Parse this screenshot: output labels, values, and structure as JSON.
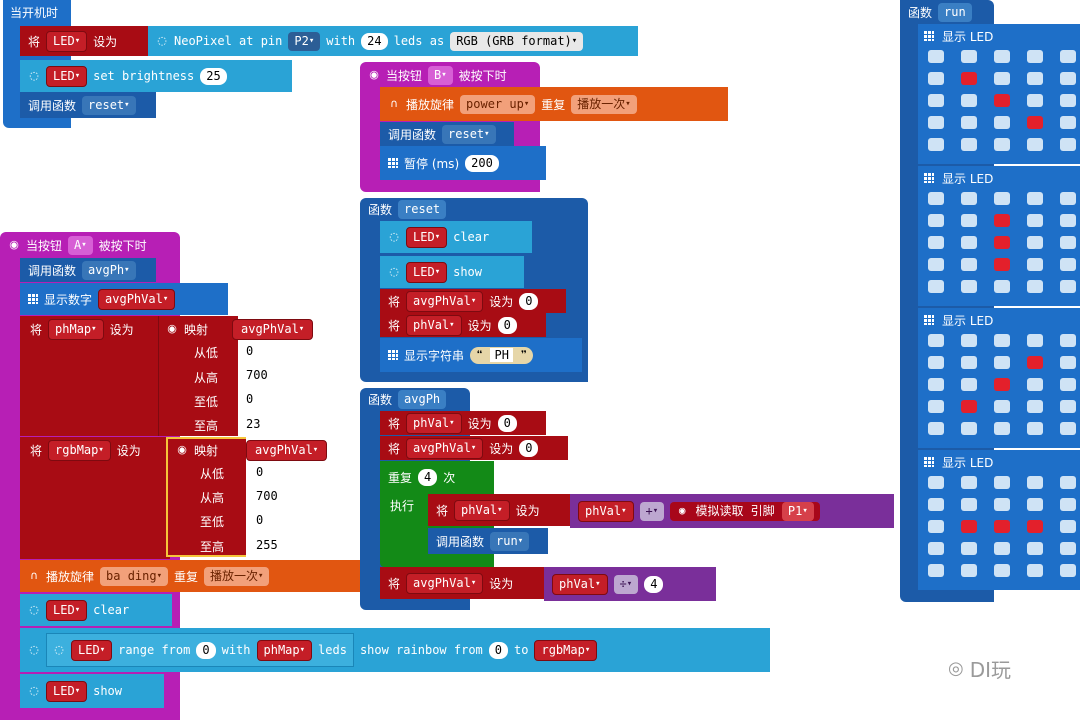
{
  "colors": {
    "blue": "#1e6fc8",
    "light_blue": "#2aa3d6",
    "dark_red": "#a80c14",
    "magenta": "#b71fb5",
    "orange": "#e15611",
    "green": "#138a17",
    "purple": "#7a2f9a",
    "led_on": "#e3202b",
    "led_off": "#cfe3f5"
  },
  "icons": {
    "neopixel": "dotted-circle-icon",
    "grid": "led-grid-icon",
    "headphones": "headphones-icon",
    "target": "target-icon"
  },
  "start": {
    "title": "当开机时",
    "set_kw": "将",
    "var": "LED",
    "set_to": "设为",
    "neo_label": "NeoPixel at pin",
    "pin": "P2",
    "with": "with",
    "count": "24",
    "leds_as": "leds as",
    "format": "RGB (GRB format)",
    "bright_var": "LED",
    "bright_label": "set brightness",
    "bright_val": "25",
    "call_kw": "调用函数",
    "call_fn": "reset"
  },
  "btnB": {
    "hat_pre": "当按钮",
    "button": "B",
    "hat_post": "被按下时",
    "play_kw": "播放旋律",
    "melody": "power up",
    "repeat_kw": "重复",
    "repeat_val": "播放一次",
    "call_kw": "调用函数",
    "call_fn": "reset",
    "pause_kw": "暂停 (ms)",
    "pause_val": "200"
  },
  "fnReset": {
    "head": "函数",
    "name": "reset",
    "r1_var": "LED",
    "r1_label": "clear",
    "r2_var": "LED",
    "r2_label": "show",
    "set_kw": "将",
    "set_to": "设为",
    "s1_var": "avgPhVal",
    "s1_val": "0",
    "s2_var": "phVal",
    "s2_val": "0",
    "str_kw": "显示字符串",
    "str_val": "PH"
  },
  "fnAvgPh": {
    "head": "函数",
    "name": "avgPh",
    "set_kw": "将",
    "set_to": "设为",
    "s1_var": "phVal",
    "s1_val": "0",
    "s2_var": "avgPhVal",
    "s2_val": "0",
    "repeat_kw": "重复",
    "repeat_n": "4",
    "times": "次",
    "do_kw": "执行",
    "loop_set_var": "phVal",
    "loop_expr_var": "phVal",
    "op_plus": "+",
    "read_kw": "模拟读取 引脚",
    "pin": "P1",
    "call_kw": "调用函数",
    "call_fn": "run",
    "s3_var": "avgPhVal",
    "div_var": "phVal",
    "op_div": "÷",
    "div_val": "4"
  },
  "btnA": {
    "hat_pre": "当按钮",
    "button": "A",
    "hat_post": "被按下时",
    "call_kw": "调用函数",
    "call_fn": "avgPh",
    "shownum_kw": "显示数字",
    "shownum_var": "avgPhVal",
    "set_kw": "将",
    "set_to": "设为",
    "map1_var": "phMap",
    "map_kw": "映射",
    "map1_src": "avgPhVal",
    "from_low": "从低",
    "from_high": "从高",
    "to_low": "至低",
    "to_high": "至高",
    "map1_fl": "0",
    "map1_fh": "700",
    "map1_tl": "0",
    "map1_th": "23",
    "map2_var": "rgbMap",
    "map2_src": "avgPhVal",
    "map2_fl": "0",
    "map2_fh": "700",
    "map2_tl": "0",
    "map2_th": "255",
    "play_kw": "播放旋律",
    "melody": "ba ding",
    "repeat_kw": "重复",
    "repeat_val": "播放一次",
    "clear_var": "LED",
    "clear_label": "clear",
    "range_var": "LED",
    "range_label": "range from",
    "range_from": "0",
    "range_with": "with",
    "range_n": "phMap",
    "range_leds": "leds",
    "rainbow_label": "show rainbow from",
    "rainbow_from": "0",
    "rainbow_to": "to",
    "rainbow_end": "rgbMap",
    "show_var": "LED",
    "show_label": "show"
  },
  "fnRun": {
    "head": "函数",
    "name": "run",
    "show_kw": "显示 LED",
    "frames": [
      [
        [
          0,
          0,
          0,
          0,
          0
        ],
        [
          0,
          1,
          0,
          0,
          0
        ],
        [
          0,
          0,
          1,
          0,
          0
        ],
        [
          0,
          0,
          0,
          1,
          0
        ],
        [
          0,
          0,
          0,
          0,
          0
        ]
      ],
      [
        [
          0,
          0,
          0,
          0,
          0
        ],
        [
          0,
          0,
          1,
          0,
          0
        ],
        [
          0,
          0,
          1,
          0,
          0
        ],
        [
          0,
          0,
          1,
          0,
          0
        ],
        [
          0,
          0,
          0,
          0,
          0
        ]
      ],
      [
        [
          0,
          0,
          0,
          0,
          0
        ],
        [
          0,
          0,
          0,
          1,
          0
        ],
        [
          0,
          0,
          1,
          0,
          0
        ],
        [
          0,
          1,
          0,
          0,
          0
        ],
        [
          0,
          0,
          0,
          0,
          0
        ]
      ],
      [
        [
          0,
          0,
          0,
          0,
          0
        ],
        [
          0,
          0,
          0,
          0,
          0
        ],
        [
          0,
          1,
          1,
          1,
          0
        ],
        [
          0,
          0,
          0,
          0,
          0
        ],
        [
          0,
          0,
          0,
          0,
          0
        ]
      ]
    ]
  },
  "watermark": "DI玩"
}
